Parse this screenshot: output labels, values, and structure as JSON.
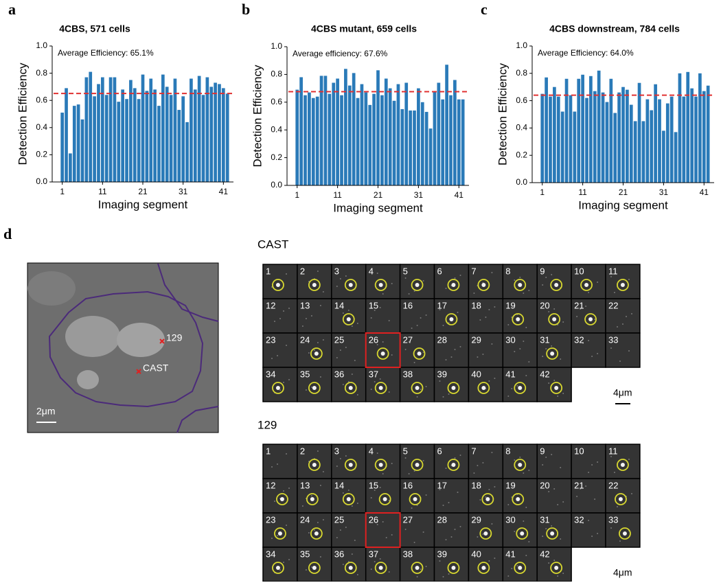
{
  "chart_data": [
    {
      "type": "bar",
      "panel_label": "a",
      "title": "4CBS, 571 cells",
      "annotation": "Average Efficiency: 65.1%",
      "mean_line": 0.651,
      "x_label": "Imaging segment",
      "y_label": "Detection Efficiency",
      "color": "#2a7ab8",
      "mean_color": "#e03030",
      "x": [
        1,
        2,
        3,
        4,
        5,
        6,
        7,
        8,
        9,
        10,
        11,
        12,
        13,
        14,
        15,
        16,
        17,
        18,
        19,
        20,
        21,
        22,
        23,
        24,
        25,
        26,
        27,
        28,
        29,
        30,
        31,
        32,
        33,
        34,
        35,
        36,
        37,
        38,
        39,
        40,
        41,
        42
      ],
      "values": [
        0.51,
        0.69,
        0.21,
        0.56,
        0.57,
        0.46,
        0.77,
        0.81,
        0.63,
        0.72,
        0.77,
        0.64,
        0.77,
        0.77,
        0.59,
        0.68,
        0.61,
        0.75,
        0.69,
        0.61,
        0.79,
        0.67,
        0.76,
        0.68,
        0.56,
        0.79,
        0.7,
        0.64,
        0.76,
        0.53,
        0.63,
        0.44,
        0.76,
        0.68,
        0.78,
        0.64,
        0.77,
        0.7,
        0.73,
        0.72,
        0.69,
        0.65
      ],
      "xlim": [
        -1.5,
        43.5
      ],
      "xticks": [
        1,
        11,
        21,
        31,
        41
      ],
      "ylim": [
        0,
        1
      ],
      "yticks": [
        {
          "value": 0,
          "label": "0.0"
        },
        0.2,
        0.4,
        0.6,
        0.8,
        {
          "value": 1,
          "label": "1.0"
        }
      ]
    },
    {
      "type": "bar",
      "panel_label": "b",
      "title": "4CBS mutant, 659 cells",
      "annotation": "Average efficiency: 67.6%",
      "mean_line": 0.676,
      "x_label": "Imaging segment",
      "y_label": "Detection Efficiency",
      "color": "#2a7ab8",
      "mean_color": "#e03030",
      "x": [
        1,
        2,
        3,
        4,
        5,
        6,
        7,
        8,
        9,
        10,
        11,
        12,
        13,
        14,
        15,
        16,
        17,
        18,
        19,
        20,
        21,
        22,
        23,
        24,
        25,
        26,
        27,
        28,
        29,
        30,
        31,
        32,
        33,
        34,
        35,
        36,
        37,
        38,
        39,
        40,
        41,
        42
      ],
      "values": [
        0.69,
        0.78,
        0.65,
        0.67,
        0.63,
        0.64,
        0.79,
        0.79,
        0.66,
        0.74,
        0.77,
        0.65,
        0.84,
        0.72,
        0.81,
        0.63,
        0.73,
        0.67,
        0.58,
        0.66,
        0.83,
        0.65,
        0.77,
        0.7,
        0.61,
        0.73,
        0.55,
        0.74,
        0.54,
        0.54,
        0.7,
        0.6,
        0.53,
        0.41,
        0.68,
        0.74,
        0.62,
        0.87,
        0.65,
        0.76,
        0.62,
        0.62
      ],
      "xlim": [
        -1.5,
        43.5
      ],
      "xticks": [
        1,
        11,
        21,
        31,
        41
      ],
      "ylim": [
        0,
        1
      ],
      "yticks": [
        {
          "value": 0,
          "label": "0.0"
        },
        0.2,
        0.4,
        0.6,
        0.8,
        {
          "value": 1,
          "label": "1.0"
        }
      ]
    },
    {
      "type": "bar",
      "panel_label": "c",
      "title": "4CBS downstream, 784 cells",
      "annotation": "Average Efficiency: 64.0%",
      "mean_line": 0.64,
      "x_label": "Imaging segment",
      "y_label": "Detection Efficiency",
      "color": "#2a7ab8",
      "mean_color": "#e03030",
      "x": [
        1,
        2,
        3,
        4,
        5,
        6,
        7,
        8,
        9,
        10,
        11,
        12,
        13,
        14,
        15,
        16,
        17,
        18,
        19,
        20,
        21,
        22,
        23,
        24,
        25,
        26,
        27,
        28,
        29,
        30,
        31,
        32,
        33,
        34,
        35,
        36,
        37,
        38,
        39,
        40,
        41,
        42
      ],
      "values": [
        0.65,
        0.77,
        0.63,
        0.7,
        0.63,
        0.52,
        0.76,
        0.64,
        0.52,
        0.76,
        0.79,
        0.62,
        0.78,
        0.67,
        0.82,
        0.66,
        0.59,
        0.76,
        0.51,
        0.66,
        0.7,
        0.68,
        0.57,
        0.45,
        0.73,
        0.45,
        0.61,
        0.53,
        0.72,
        0.61,
        0.38,
        0.58,
        0.63,
        0.37,
        0.8,
        0.63,
        0.81,
        0.69,
        0.63,
        0.8,
        0.67,
        0.71
      ],
      "xlim": [
        -1.5,
        43.5
      ],
      "xticks": [
        1,
        11,
        21,
        31,
        41
      ],
      "ylim": [
        0,
        1
      ],
      "yticks": [
        {
          "value": 0,
          "label": "0.0"
        },
        0.2,
        0.4,
        0.6,
        0.8,
        {
          "value": 1,
          "label": "1.0"
        }
      ]
    }
  ],
  "panel_d": {
    "label": "d",
    "image": {
      "markers": [
        "129",
        "CAST"
      ],
      "scale_bar": "2μm"
    },
    "grids": [
      {
        "title": "CAST",
        "tiles": [
          1,
          2,
          3,
          4,
          5,
          6,
          7,
          8,
          9,
          10,
          11,
          12,
          13,
          14,
          15,
          16,
          17,
          18,
          19,
          20,
          21,
          22,
          23,
          24,
          25,
          26,
          27,
          28,
          29,
          30,
          31,
          32,
          33,
          34,
          35,
          36,
          37,
          38,
          39,
          40,
          41,
          42
        ],
        "scale_bar": "4μm"
      },
      {
        "title": "129",
        "tiles": [
          1,
          2,
          3,
          4,
          5,
          6,
          7,
          8,
          9,
          10,
          11,
          12,
          13,
          14,
          15,
          16,
          17,
          18,
          19,
          20,
          21,
          22,
          23,
          24,
          25,
          26,
          27,
          28,
          29,
          30,
          31,
          32,
          33,
          34,
          35,
          36,
          37,
          38,
          39,
          40,
          41,
          42
        ],
        "scale_bar": "4μm"
      }
    ]
  }
}
